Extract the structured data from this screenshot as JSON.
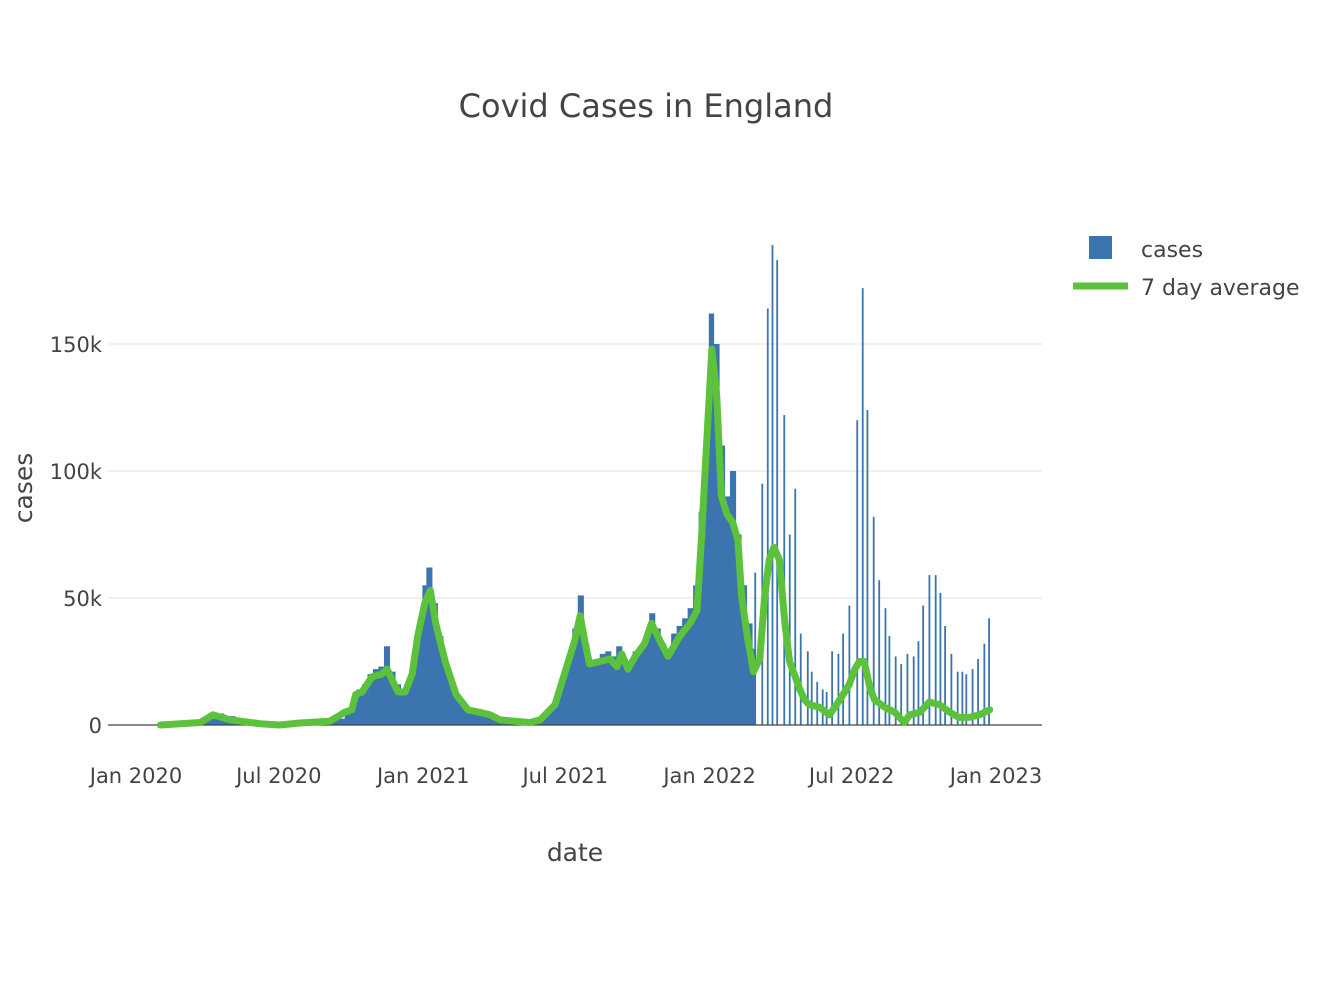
{
  "chart_data": {
    "type": "bar+line",
    "title": "Covid Cases in England",
    "xlabel": "date",
    "ylabel": "cases",
    "xlim": [
      "2019-12-15",
      "2023-01-20"
    ],
    "ylim": [
      -10000,
      200000
    ],
    "grid": true,
    "legend_position": "top-right",
    "x_ticks": [
      {
        "date": "2020-01-01",
        "label": "Jan 2020"
      },
      {
        "date": "2020-07-01",
        "label": "Jul 2020"
      },
      {
        "date": "2021-01-01",
        "label": "Jan 2021"
      },
      {
        "date": "2021-07-01",
        "label": "Jul 2021"
      },
      {
        "date": "2022-01-01",
        "label": "Jan 2022"
      },
      {
        "date": "2022-07-01",
        "label": "Jul 2022"
      },
      {
        "date": "2023-01-01",
        "label": "Jan 2023"
      }
    ],
    "y_ticks": [
      {
        "value": 0,
        "label": "0"
      },
      {
        "value": 50000,
        "label": "50k"
      },
      {
        "value": 100000,
        "label": "100k"
      },
      {
        "value": 150000,
        "label": "150k"
      }
    ],
    "series": [
      {
        "name": "cases",
        "type": "bar",
        "color": "#3b74ae",
        "points": [
          [
            "2020-02-01",
            100
          ],
          [
            "2020-02-15",
            200
          ],
          [
            "2020-03-01",
            300
          ],
          [
            "2020-03-15",
            1500
          ],
          [
            "2020-03-29",
            3500
          ],
          [
            "2020-04-08",
            4500
          ],
          [
            "2020-04-22",
            3500
          ],
          [
            "2020-05-06",
            2500
          ],
          [
            "2020-05-20",
            1800
          ],
          [
            "2020-06-03",
            1200
          ],
          [
            "2020-06-17",
            800
          ],
          [
            "2020-07-01",
            700
          ],
          [
            "2020-07-15",
            600
          ],
          [
            "2020-07-29",
            800
          ],
          [
            "2020-08-12",
            1000
          ],
          [
            "2020-08-26",
            1300
          ],
          [
            "2020-09-09",
            2500
          ],
          [
            "2020-09-23",
            5000
          ],
          [
            "2020-10-01",
            8000
          ],
          [
            "2020-10-08",
            14000
          ],
          [
            "2020-10-15",
            16000
          ],
          [
            "2020-10-22",
            20000
          ],
          [
            "2020-10-29",
            22000
          ],
          [
            "2020-11-05",
            23000
          ],
          [
            "2020-11-12",
            31000
          ],
          [
            "2020-11-19",
            21000
          ],
          [
            "2020-11-26",
            16000
          ],
          [
            "2020-12-03",
            13000
          ],
          [
            "2020-12-10",
            17000
          ],
          [
            "2020-12-17",
            28000
          ],
          [
            "2020-12-24",
            40000
          ],
          [
            "2020-12-31",
            55000
          ],
          [
            "2021-01-05",
            62000
          ],
          [
            "2021-01-12",
            48000
          ],
          [
            "2021-01-19",
            35000
          ],
          [
            "2021-01-26",
            25000
          ],
          [
            "2021-02-02",
            18000
          ],
          [
            "2021-02-09",
            12000
          ],
          [
            "2021-02-16",
            9000
          ],
          [
            "2021-02-23",
            7000
          ],
          [
            "2021-03-02",
            5500
          ],
          [
            "2021-03-09",
            5000
          ],
          [
            "2021-03-16",
            5000
          ],
          [
            "2021-03-23",
            4500
          ],
          [
            "2021-04-01",
            3000
          ],
          [
            "2021-04-15",
            2500
          ],
          [
            "2021-05-01",
            2200
          ],
          [
            "2021-05-15",
            2000
          ],
          [
            "2021-05-29",
            2500
          ],
          [
            "2021-06-05",
            5000
          ],
          [
            "2021-06-12",
            8000
          ],
          [
            "2021-06-19",
            12000
          ],
          [
            "2021-06-26",
            20000
          ],
          [
            "2021-07-03",
            28000
          ],
          [
            "2021-07-10",
            38000
          ],
          [
            "2021-07-17",
            51000
          ],
          [
            "2021-07-24",
            32000
          ],
          [
            "2021-07-31",
            25000
          ],
          [
            "2021-08-07",
            26000
          ],
          [
            "2021-08-14",
            28000
          ],
          [
            "2021-08-21",
            29000
          ],
          [
            "2021-08-28",
            27000
          ],
          [
            "2021-09-04",
            31000
          ],
          [
            "2021-09-11",
            26000
          ],
          [
            "2021-09-18",
            24000
          ],
          [
            "2021-09-25",
            29000
          ],
          [
            "2021-10-02",
            31000
          ],
          [
            "2021-10-09",
            35000
          ],
          [
            "2021-10-16",
            44000
          ],
          [
            "2021-10-23",
            38000
          ],
          [
            "2021-10-30",
            32000
          ],
          [
            "2021-11-06",
            30000
          ],
          [
            "2021-11-13",
            36000
          ],
          [
            "2021-11-20",
            39000
          ],
          [
            "2021-11-27",
            42000
          ],
          [
            "2021-12-04",
            46000
          ],
          [
            "2021-12-11",
            55000
          ],
          [
            "2021-12-18",
            84000
          ],
          [
            "2021-12-25",
            107000
          ],
          [
            "2021-12-31",
            162000
          ],
          [
            "2022-01-06",
            150000
          ],
          [
            "2022-01-13",
            110000
          ],
          [
            "2022-01-20",
            90000
          ],
          [
            "2022-01-27",
            100000
          ],
          [
            "2022-02-03",
            75000
          ],
          [
            "2022-02-10",
            55000
          ],
          [
            "2022-02-17",
            40000
          ],
          [
            "2022-02-24",
            30000
          ],
          [
            "2022-02-27",
            60000
          ],
          [
            "2022-03-08",
            95000
          ],
          [
            "2022-03-15",
            164000
          ],
          [
            "2022-03-21",
            189000
          ],
          [
            "2022-03-27",
            183000
          ],
          [
            "2022-04-05",
            122000
          ],
          [
            "2022-04-12",
            75000
          ],
          [
            "2022-04-19",
            93000
          ],
          [
            "2022-04-26",
            36000
          ],
          [
            "2022-05-05",
            29000
          ],
          [
            "2022-05-10",
            21000
          ],
          [
            "2022-05-17",
            17000
          ],
          [
            "2022-05-24",
            14000
          ],
          [
            "2022-05-29",
            13000
          ],
          [
            "2022-06-05",
            29000
          ],
          [
            "2022-06-13",
            28000
          ],
          [
            "2022-06-19",
            36000
          ],
          [
            "2022-06-27",
            47000
          ],
          [
            "2022-07-07",
            120000
          ],
          [
            "2022-07-14",
            172000
          ],
          [
            "2022-07-20",
            124000
          ],
          [
            "2022-07-28",
            82000
          ],
          [
            "2022-08-04",
            57000
          ],
          [
            "2022-08-12",
            46000
          ],
          [
            "2022-08-17",
            35000
          ],
          [
            "2022-08-25",
            27000
          ],
          [
            "2022-09-01",
            24000
          ],
          [
            "2022-09-09",
            28000
          ],
          [
            "2022-09-17",
            27000
          ],
          [
            "2022-09-23",
            33000
          ],
          [
            "2022-09-29",
            47000
          ],
          [
            "2022-10-07",
            59000
          ],
          [
            "2022-10-15",
            59000
          ],
          [
            "2022-10-21",
            52000
          ],
          [
            "2022-10-27",
            39000
          ],
          [
            "2022-11-04",
            28000
          ],
          [
            "2022-11-12",
            21000
          ],
          [
            "2022-11-18",
            21000
          ],
          [
            "2022-11-23",
            20000
          ],
          [
            "2022-12-01",
            22000
          ],
          [
            "2022-12-08",
            26000
          ],
          [
            "2022-12-16",
            32000
          ],
          [
            "2022-12-22",
            42000
          ]
        ]
      },
      {
        "name": "7 day average",
        "type": "line",
        "color": "#5cc13b",
        "points": [
          [
            "2020-02-01",
            0
          ],
          [
            "2020-03-23",
            1000
          ],
          [
            "2020-04-08",
            4000
          ],
          [
            "2020-04-30",
            2000
          ],
          [
            "2020-06-07",
            500
          ],
          [
            "2020-07-02",
            0
          ],
          [
            "2020-07-28",
            800
          ],
          [
            "2020-09-04",
            1500
          ],
          [
            "2020-09-23",
            5000
          ],
          [
            "2020-10-02",
            6000
          ],
          [
            "2020-10-07",
            12000
          ],
          [
            "2020-10-15",
            13000
          ],
          [
            "2020-10-28",
            19000
          ],
          [
            "2020-11-09",
            20000
          ],
          [
            "2020-11-16",
            22000
          ],
          [
            "2020-11-22",
            18000
          ],
          [
            "2020-11-30",
            13000
          ],
          [
            "2020-12-09",
            13000
          ],
          [
            "2020-12-18",
            20000
          ],
          [
            "2020-12-25",
            35000
          ],
          [
            "2021-01-03",
            48000
          ],
          [
            "2021-01-10",
            53000
          ],
          [
            "2021-01-17",
            40000
          ],
          [
            "2021-01-29",
            25000
          ],
          [
            "2021-02-12",
            12000
          ],
          [
            "2021-02-27",
            6000
          ],
          [
            "2021-03-14",
            5000
          ],
          [
            "2021-03-27",
            4000
          ],
          [
            "2021-04-09",
            2000
          ],
          [
            "2021-05-17",
            1000
          ],
          [
            "2021-05-30",
            2000
          ],
          [
            "2021-06-18",
            8000
          ],
          [
            "2021-06-30",
            20000
          ],
          [
            "2021-07-13",
            33000
          ],
          [
            "2021-07-20",
            43000
          ],
          [
            "2021-07-26",
            33000
          ],
          [
            "2021-08-01",
            24000
          ],
          [
            "2021-08-14",
            25000
          ],
          [
            "2021-08-27",
            26000
          ],
          [
            "2021-09-05",
            23000
          ],
          [
            "2021-09-11",
            28000
          ],
          [
            "2021-09-19",
            22000
          ],
          [
            "2021-09-28",
            27000
          ],
          [
            "2021-10-10",
            32000
          ],
          [
            "2021-10-19",
            40000
          ],
          [
            "2021-10-30",
            33000
          ],
          [
            "2021-11-09",
            27000
          ],
          [
            "2021-11-24",
            35000
          ],
          [
            "2021-12-07",
            40000
          ],
          [
            "2021-12-16",
            45000
          ],
          [
            "2021-12-22",
            75000
          ],
          [
            "2021-12-28",
            110000
          ],
          [
            "2022-01-04",
            148000
          ],
          [
            "2022-01-10",
            130000
          ],
          [
            "2022-01-16",
            90000
          ],
          [
            "2022-01-23",
            83000
          ],
          [
            "2022-01-30",
            80000
          ],
          [
            "2022-02-06",
            73000
          ],
          [
            "2022-02-11",
            50000
          ],
          [
            "2022-02-18",
            35000
          ],
          [
            "2022-02-26",
            21000
          ],
          [
            "2022-03-06",
            26000
          ],
          [
            "2022-03-12",
            50000
          ],
          [
            "2022-03-18",
            65000
          ],
          [
            "2022-03-24",
            70000
          ],
          [
            "2022-03-31",
            65000
          ],
          [
            "2022-04-07",
            40000
          ],
          [
            "2022-04-13",
            25000
          ],
          [
            "2022-04-19",
            20000
          ],
          [
            "2022-04-26",
            14000
          ],
          [
            "2022-05-02",
            10000
          ],
          [
            "2022-05-08",
            8000
          ],
          [
            "2022-05-21",
            7000
          ],
          [
            "2022-06-03",
            4000
          ],
          [
            "2022-06-16",
            10000
          ],
          [
            "2022-06-28",
            16000
          ],
          [
            "2022-07-05",
            22000
          ],
          [
            "2022-07-11",
            25000
          ],
          [
            "2022-07-17",
            25000
          ],
          [
            "2022-07-24",
            15000
          ],
          [
            "2022-07-30",
            10000
          ],
          [
            "2022-08-12",
            7000
          ],
          [
            "2022-08-25",
            5000
          ],
          [
            "2022-09-06",
            1000
          ],
          [
            "2022-09-13",
            4000
          ],
          [
            "2022-09-26",
            5000
          ],
          [
            "2022-10-08",
            9000
          ],
          [
            "2022-10-21",
            8000
          ],
          [
            "2022-11-03",
            5000
          ],
          [
            "2022-11-15",
            3000
          ],
          [
            "2022-11-28",
            3000
          ],
          [
            "2022-12-11",
            4000
          ],
          [
            "2022-12-24",
            6000
          ]
        ]
      }
    ]
  }
}
